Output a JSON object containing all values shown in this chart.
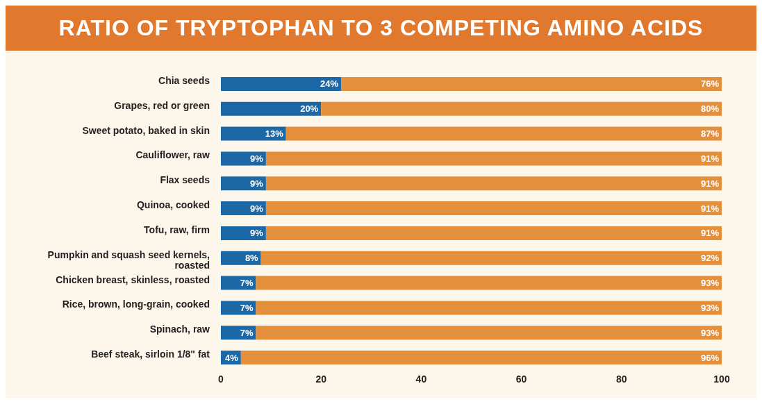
{
  "chart_data": {
    "type": "bar",
    "title": "RATIO OF TRYPTOPHAN TO 3 COMPETING AMINO ACIDS",
    "orientation": "horizontal",
    "stacked": true,
    "categories": [
      "Chia seeds",
      "Grapes, red or green",
      "Sweet potato, baked in skin",
      "Cauliflower, raw",
      "Flax seeds",
      "Quinoa, cooked",
      "Tofu, raw, firm",
      "Pumpkin and squash seed kernels, roasted",
      "Chicken breast, skinless, roasted",
      "Rice, brown, long-grain, cooked",
      "Spinach, raw",
      "Beef steak, sirloin 1/8\" fat"
    ],
    "series": [
      {
        "color": "#1c68a6",
        "values": [
          24,
          20,
          13,
          9,
          9,
          9,
          9,
          8,
          7,
          7,
          7,
          4
        ],
        "value_labels": [
          "24%",
          "20%",
          "13%",
          "9%",
          "9%",
          "9%",
          "9%",
          "8%",
          "7%",
          "7%",
          "7%",
          "4%"
        ]
      },
      {
        "color": "#e38f3c",
        "values": [
          76,
          80,
          87,
          91,
          91,
          91,
          91,
          92,
          93,
          93,
          93,
          96
        ],
        "value_labels": [
          "76%",
          "80%",
          "87%",
          "91%",
          "91%",
          "91%",
          "91%",
          "92%",
          "93%",
          "93%",
          "93%",
          "96%"
        ]
      }
    ],
    "xlim": [
      0,
      100
    ],
    "xticks": [
      0,
      20,
      40,
      60,
      80,
      100
    ],
    "grid": false,
    "legend": false
  }
}
